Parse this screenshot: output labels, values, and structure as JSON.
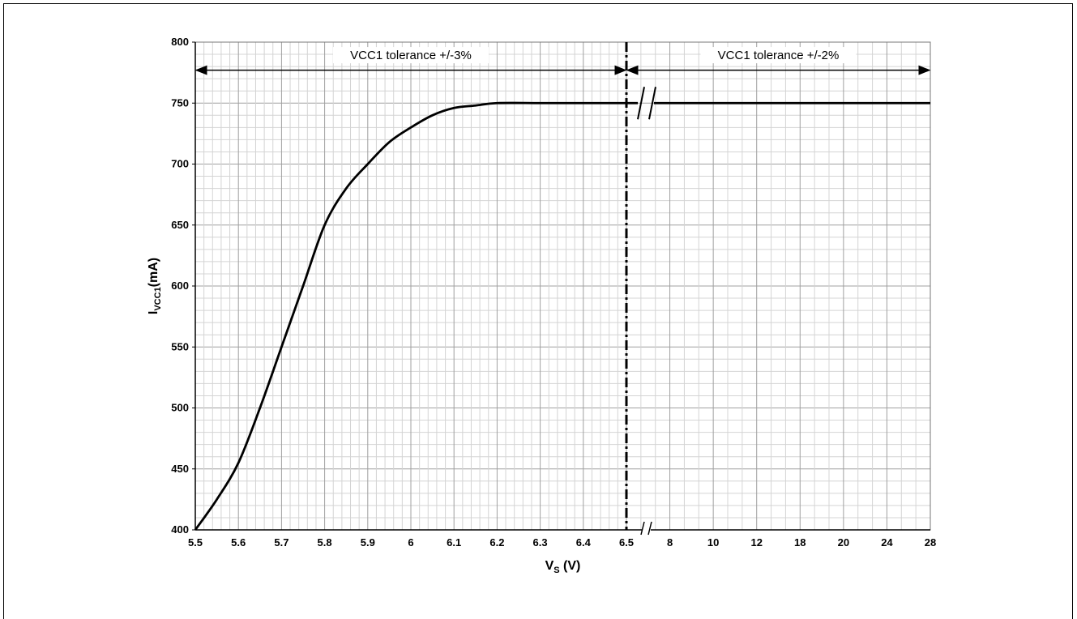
{
  "chart_data": {
    "type": "line",
    "x_axis": {
      "label": "V",
      "label_sub": "S",
      "label_unit": " (V)",
      "segment1_ticks": [
        "5.5",
        "5.6",
        "5.7",
        "5.8",
        "5.9",
        "6",
        "6.1",
        "6.2",
        "6.3",
        "6.4",
        "6.5"
      ],
      "segment2_ticks": [
        "6.5",
        "8",
        "10",
        "12",
        "18",
        "20",
        "24",
        "28"
      ],
      "segment1_range": [
        5.5,
        6.5
      ],
      "segment2_range": [
        6.5,
        28
      ],
      "axis_break": true
    },
    "y_axis": {
      "label": "I",
      "label_sub": "VCC1",
      "label_unit": "(mA)",
      "ticks": [
        "800",
        "750",
        "700",
        "650",
        "600",
        "550",
        "500",
        "450",
        "400"
      ],
      "range": [
        400,
        800
      ]
    },
    "grid": true,
    "annotations": [
      {
        "text": "VCC1 tolerance +/-3%",
        "span": [
          5.5,
          6.5
        ]
      },
      {
        "text": "VCC1 tolerance +/-2%",
        "span": [
          6.5,
          28
        ]
      }
    ],
    "divider_at": 6.5,
    "series": [
      {
        "values_segment1": [
          [
            5.5,
            400
          ],
          [
            5.55,
            425
          ],
          [
            5.6,
            455
          ],
          [
            5.65,
            500
          ],
          [
            5.7,
            550
          ],
          [
            5.75,
            600
          ],
          [
            5.8,
            650
          ],
          [
            5.85,
            680
          ],
          [
            5.9,
            700
          ],
          [
            5.95,
            718
          ],
          [
            6.0,
            730
          ],
          [
            6.05,
            740
          ],
          [
            6.1,
            746
          ],
          [
            6.15,
            748
          ],
          [
            6.2,
            750
          ],
          [
            6.3,
            750
          ],
          [
            6.4,
            750
          ],
          [
            6.5,
            750
          ]
        ],
        "values_segment2": [
          [
            6.5,
            750
          ],
          [
            8,
            750
          ],
          [
            10,
            750
          ],
          [
            12,
            750
          ],
          [
            18,
            750
          ],
          [
            20,
            750
          ],
          [
            24,
            750
          ],
          [
            28,
            750
          ]
        ]
      }
    ]
  }
}
